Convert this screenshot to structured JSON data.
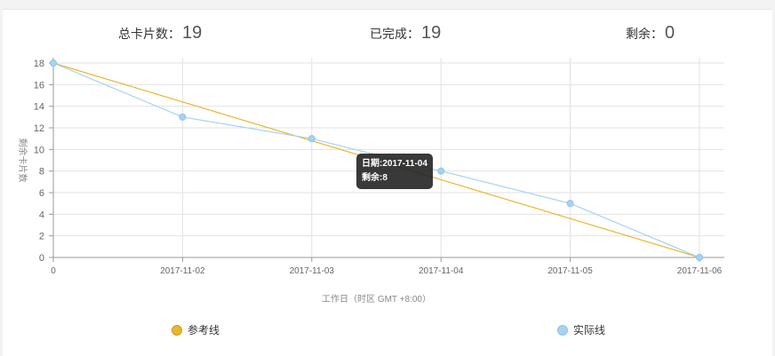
{
  "stats": {
    "total_label": "总卡片数：",
    "total_value": "19",
    "done_label": "已完成：",
    "done_value": "19",
    "remaining_label": "剩余：",
    "remaining_value": "0"
  },
  "tooltip": {
    "date_line": "日期:2017-11-04",
    "remaining_line": "剩余:8"
  },
  "colors": {
    "reference": "#e8b730",
    "actual": "#a6d3ef",
    "grid": "#e2e2e2",
    "axis_text": "#666666"
  },
  "chart_data": {
    "type": "line",
    "categories": [
      "0",
      "2017-11-02",
      "2017-11-03",
      "2017-11-04",
      "2017-11-05",
      "2017-11-06"
    ],
    "series": [
      {
        "name": "参考线",
        "values": [
          18,
          14.4,
          10.8,
          7.2,
          3.6,
          0
        ]
      },
      {
        "name": "实际线",
        "values": [
          18,
          13,
          11,
          8,
          5,
          0
        ]
      }
    ],
    "xlabel": "工作日（时区 GMT +8:00）",
    "ylabel": "剩余卡片数",
    "ylim": [
      0,
      18
    ],
    "yticks": [
      0,
      2,
      4,
      6,
      8,
      10,
      12,
      14,
      16,
      18
    ],
    "grid": true,
    "legend_position": "bottom"
  }
}
